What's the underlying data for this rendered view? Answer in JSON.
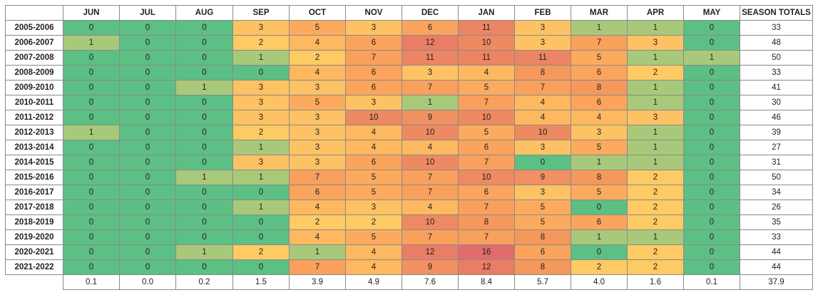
{
  "headers": [
    "JUN",
    "JUL",
    "AUG",
    "SEP",
    "OCT",
    "NOV",
    "DEC",
    "JAN",
    "FEB",
    "MAR",
    "APR",
    "MAY",
    "SEASON TOTALS"
  ],
  "rows": [
    {
      "season": "2005-2006",
      "values": [
        0,
        0,
        0,
        3,
        5,
        3,
        6,
        11,
        3,
        1,
        1,
        0
      ],
      "total": "33"
    },
    {
      "season": "2006-2007",
      "values": [
        1,
        0,
        0,
        2,
        4,
        6,
        12,
        10,
        3,
        7,
        3,
        0
      ],
      "total": "48"
    },
    {
      "season": "2007-2008",
      "values": [
        0,
        0,
        0,
        1,
        2,
        7,
        11,
        11,
        11,
        5,
        1,
        1
      ],
      "total": "50"
    },
    {
      "season": "2008-2009",
      "values": [
        0,
        0,
        0,
        0,
        4,
        6,
        3,
        4,
        8,
        6,
        2,
        0
      ],
      "total": "33"
    },
    {
      "season": "2009-2010",
      "values": [
        0,
        0,
        1,
        3,
        3,
        6,
        7,
        5,
        7,
        8,
        1,
        0
      ],
      "total": "41"
    },
    {
      "season": "2010-2011",
      "values": [
        0,
        0,
        0,
        3,
        5,
        3,
        1,
        7,
        4,
        6,
        1,
        0
      ],
      "total": "30"
    },
    {
      "season": "2011-2012",
      "values": [
        0,
        0,
        0,
        3,
        3,
        10,
        9,
        10,
        4,
        4,
        3,
        0
      ],
      "total": "46"
    },
    {
      "season": "2012-2013",
      "values": [
        1,
        0,
        0,
        2,
        3,
        4,
        10,
        5,
        10,
        3,
        1,
        0
      ],
      "total": "39"
    },
    {
      "season": "2013-2014",
      "values": [
        0,
        0,
        0,
        1,
        3,
        4,
        4,
        6,
        3,
        5,
        1,
        0
      ],
      "total": "27"
    },
    {
      "season": "2014-2015",
      "values": [
        0,
        0,
        0,
        3,
        3,
        6,
        10,
        7,
        0,
        1,
        1,
        0
      ],
      "total": "31"
    },
    {
      "season": "2015-2016",
      "values": [
        0,
        0,
        1,
        1,
        7,
        5,
        7,
        10,
        9,
        8,
        2,
        0
      ],
      "total": "50"
    },
    {
      "season": "2016-2017",
      "values": [
        0,
        0,
        0,
        0,
        6,
        5,
        7,
        6,
        3,
        5,
        2,
        0
      ],
      "total": "34"
    },
    {
      "season": "2017-2018",
      "values": [
        0,
        0,
        0,
        1,
        4,
        3,
        4,
        7,
        5,
        0,
        2,
        0
      ],
      "total": "26"
    },
    {
      "season": "2018-2019",
      "values": [
        0,
        0,
        0,
        0,
        2,
        2,
        10,
        8,
        5,
        6,
        2,
        0
      ],
      "total": "35"
    },
    {
      "season": "2019-2020",
      "values": [
        0,
        0,
        0,
        0,
        4,
        5,
        7,
        7,
        8,
        1,
        1,
        0
      ],
      "total": "33"
    },
    {
      "season": "2020-2021",
      "values": [
        0,
        0,
        1,
        2,
        1,
        4,
        12,
        16,
        6,
        0,
        2,
        0
      ],
      "total": "44"
    },
    {
      "season": "2021-2022",
      "values": [
        0,
        0,
        0,
        0,
        7,
        4,
        9,
        12,
        8,
        2,
        2,
        0
      ],
      "total": "44"
    }
  ],
  "averages": [
    "0.1",
    "0.0",
    "0.2",
    "1.5",
    "3.9",
    "4.9",
    "7.6",
    "8.4",
    "5.7",
    "4.0",
    "1.6",
    "0.1",
    "37.9"
  ],
  "colors": {
    "c0": "#5cbf84",
    "c1": "#a9c97a",
    "c2": "#fdca63",
    "c3": "#fdc263",
    "c4": "#fdb860",
    "c5": "#fcab5e",
    "c6": "#fba45d",
    "c7": "#f9a05d",
    "c8": "#f5985c",
    "c9": "#f19060",
    "c10": "#ee8a61",
    "c11": "#ec8563",
    "c12": "#ea7d66",
    "c16": "#e26b6b"
  }
}
